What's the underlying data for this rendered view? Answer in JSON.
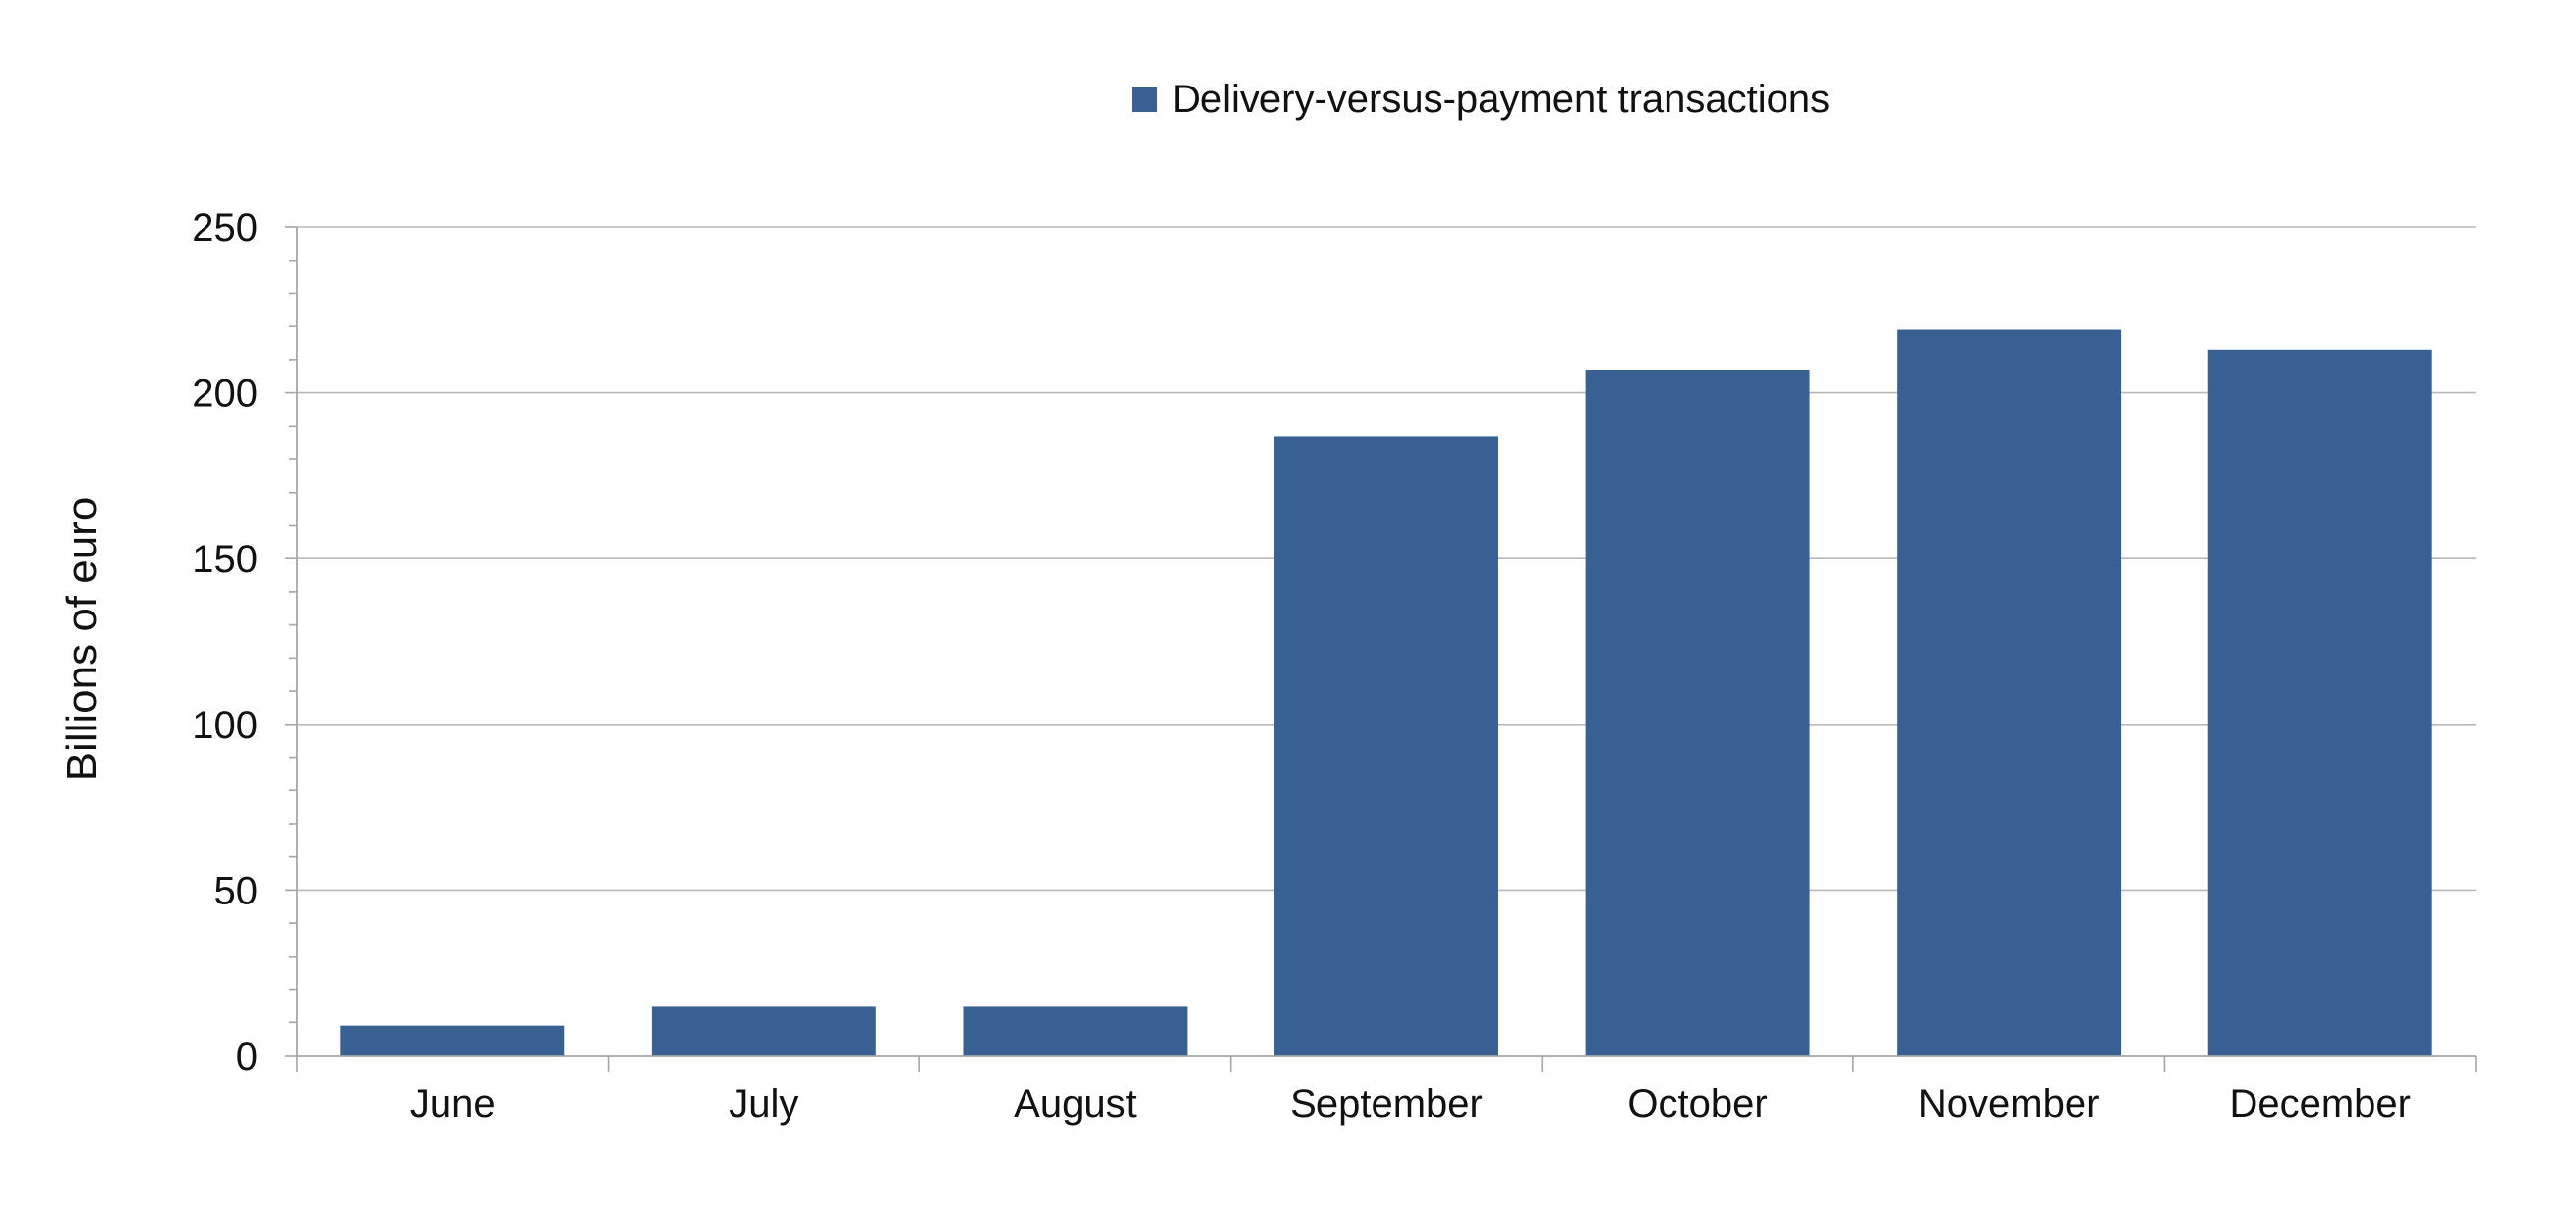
{
  "chart_data": {
    "type": "bar",
    "categories": [
      "June",
      "July",
      "August",
      "September",
      "October",
      "November",
      "December"
    ],
    "series": [
      {
        "name": "Delivery-versus-payment transactions",
        "values": [
          9,
          15,
          15,
          187,
          207,
          219,
          213
        ],
        "color": "#386090"
      }
    ],
    "title": "",
    "xlabel": "",
    "ylabel": "Billions of euro",
    "ylim": [
      0,
      250
    ],
    "yticks": [
      0,
      50,
      100,
      150,
      200,
      250
    ],
    "y_minor_step": 10,
    "grid": true,
    "legend": "top-center"
  }
}
